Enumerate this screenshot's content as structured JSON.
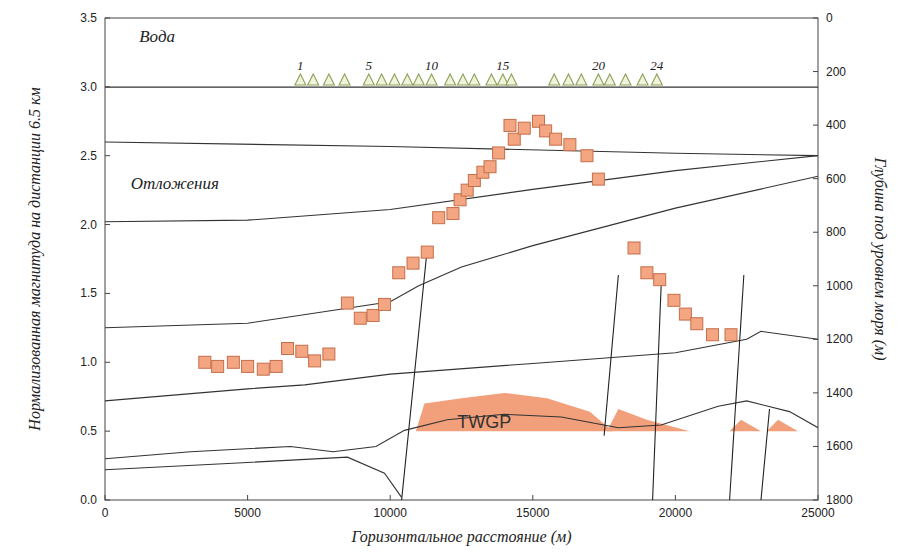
{
  "chart_data": {
    "type": "scatter",
    "x_label": "Горизонтальное расстояние (м)",
    "y_label": "Нормализованная магнитуда на дистанции 6.5 км",
    "y2_label": "Глубина под уровнем моря (м)",
    "xlim": [
      0,
      25000
    ],
    "xticks": [
      0,
      5000,
      10000,
      15000,
      20000,
      25000
    ],
    "ylim": [
      0,
      3.5
    ],
    "yticks": [
      {
        "value": 0,
        "label": "0.0"
      },
      {
        "value": 0.5,
        "label": "0.5"
      },
      {
        "value": 1,
        "label": "1.0"
      },
      {
        "value": 1.5,
        "label": "1.5"
      },
      {
        "value": 2,
        "label": "2.0"
      },
      {
        "value": 2.5,
        "label": "2.5"
      },
      {
        "value": 3,
        "label": "3.0"
      },
      {
        "value": 3.5,
        "label": "3.5"
      }
    ],
    "y2lim": [
      1800,
      0
    ],
    "y2ticks": [
      0,
      200,
      400,
      600,
      800,
      1000,
      1200,
      1400,
      1600,
      1800
    ],
    "grid": false,
    "annotations": [
      {
        "text": "Вода"
      },
      {
        "text": "Отложения"
      },
      {
        "text": "TWGP"
      }
    ],
    "series": [
      {
        "type": "scatter",
        "marker": "square",
        "color": "#f4a582",
        "x": [
          3500,
          3950,
          4500,
          5000,
          5550,
          6000,
          6400,
          6900,
          7350,
          7850,
          8500,
          8950,
          9400,
          9800,
          10300,
          10800,
          11300,
          11700,
          12200,
          12450,
          12700,
          12950,
          13250,
          13500,
          13800,
          14200,
          14350,
          14700,
          15200,
          15450,
          15800,
          16300,
          16900,
          17300,
          18550,
          19000,
          19450,
          19950,
          20350,
          20750,
          21300,
          21950
        ],
        "values": [
          1.0,
          0.97,
          1.0,
          0.97,
          0.95,
          0.97,
          1.1,
          1.08,
          1.01,
          1.06,
          1.43,
          1.32,
          1.34,
          1.42,
          1.65,
          1.72,
          1.8,
          2.05,
          2.08,
          2.18,
          2.25,
          2.32,
          2.38,
          2.42,
          2.52,
          2.72,
          2.62,
          2.7,
          2.75,
          2.68,
          2.62,
          2.58,
          2.5,
          2.33,
          1.83,
          1.65,
          1.6,
          1.45,
          1.35,
          1.28,
          1.2,
          1.2
        ]
      },
      {
        "type": "line",
        "axis": "y2",
        "color": "#333333",
        "line_style": "solid",
        "x": [
          0,
          25000
        ],
        "values": [
          258,
          258
        ]
      },
      {
        "type": "line",
        "axis": "y2",
        "color": "#333333",
        "line_style": "solid",
        "x": [
          0,
          10000,
          20000,
          25000
        ],
        "values": [
          463,
          480,
          505,
          514
        ]
      },
      {
        "type": "line",
        "axis": "y2",
        "color": "#333333",
        "line_style": "solid",
        "x": [
          0,
          5000,
          10000,
          15000,
          20000,
          25000
        ],
        "values": [
          761,
          755,
          715,
          640,
          570,
          514
        ]
      },
      {
        "type": "line",
        "axis": "y2",
        "color": "#333333",
        "line_style": "solid",
        "x": [
          0,
          5000,
          10000,
          11000,
          12500,
          15000,
          20000,
          25000
        ],
        "values": [
          1157,
          1140,
          1060,
          1000,
          930,
          850,
          710,
          591
        ]
      },
      {
        "type": "line",
        "axis": "y2",
        "color": "#333333",
        "line_style": "solid",
        "x": [
          0,
          5000,
          7000,
          10000,
          15000,
          20000,
          22500,
          23000,
          25000
        ],
        "values": [
          1430,
          1385,
          1370,
          1330,
          1290,
          1250,
          1200,
          1170,
          1200
        ]
      },
      {
        "type": "line",
        "axis": "y2",
        "color": "#333333",
        "line_style": "solid",
        "x": [
          0,
          3000,
          6500,
          8000,
          9500,
          10500,
          12000,
          14000,
          16000,
          18000,
          19500,
          21500,
          22500,
          24000,
          25000
        ],
        "values": [
          1646,
          1620,
          1600,
          1620,
          1600,
          1540,
          1500,
          1480,
          1490,
          1530,
          1520,
          1450,
          1430,
          1470,
          1530
        ]
      },
      {
        "type": "line",
        "axis": "y2",
        "color": "#333333",
        "line_style": "solid",
        "x": [
          0,
          5000,
          8500,
          9800,
          10400
        ],
        "values": [
          1687,
          1660,
          1640,
          1700,
          1790
        ]
      },
      {
        "type": "line",
        "axis": "y2",
        "color": "#222222",
        "line_style": "solid",
        "x": [
          10400,
          11300
        ],
        "values": [
          1800,
          860
        ]
      },
      {
        "type": "line",
        "axis": "y2",
        "color": "#222222",
        "line_style": "solid",
        "x": [
          17500,
          18000
        ],
        "values": [
          1560,
          960
        ]
      },
      {
        "type": "line",
        "axis": "y2",
        "color": "#222222",
        "line_style": "solid",
        "x": [
          19200,
          19500
        ],
        "values": [
          1800,
          1000
        ]
      },
      {
        "type": "line",
        "axis": "y2",
        "color": "#222222",
        "line_style": "solid",
        "x": [
          21900,
          22400
        ],
        "values": [
          1800,
          960
        ]
      },
      {
        "type": "line",
        "axis": "y2",
        "color": "#222222",
        "line_style": "solid",
        "x": [
          23000,
          23300
        ],
        "values": [
          1800,
          1460
        ]
      },
      {
        "type": "area",
        "axis": "y2",
        "color": "#f2a07b",
        "x": [
          10900,
          11200,
          12500,
          14000,
          15500,
          17000,
          17800
        ],
        "values": [
          1543,
          1440,
          1420,
          1400,
          1420,
          1470,
          1543
        ]
      },
      {
        "type": "area",
        "axis": "y2",
        "color": "#f2a07b",
        "x": [
          17600,
          18000,
          19000,
          20500
        ],
        "values": [
          1543,
          1460,
          1500,
          1543
        ]
      },
      {
        "type": "area",
        "axis": "y2",
        "color": "#f2a07b",
        "x": [
          21900,
          22300,
          23000
        ],
        "values": [
          1543,
          1500,
          1543
        ]
      },
      {
        "type": "area",
        "axis": "y2",
        "color": "#f2a07b",
        "x": [
          23200,
          23600,
          24300
        ],
        "values": [
          1543,
          1500,
          1543
        ]
      },
      {
        "type": "scatter",
        "marker": "triangle",
        "axis": "y2",
        "color": "#8fa05a",
        "x": [
          6850,
          7300,
          7850,
          8400,
          9250,
          9700,
          10150,
          10600,
          11000,
          11450,
          12100,
          12550,
          12950,
          13550,
          13950,
          14250,
          15750,
          16250,
          16700,
          17300,
          17700,
          18250,
          18850,
          19350
        ],
        "values": [
          250,
          250,
          250,
          250,
          250,
          250,
          250,
          250,
          250,
          250,
          250,
          250,
          250,
          250,
          250,
          250,
          250,
          250,
          250,
          250,
          250,
          250,
          250,
          250
        ],
        "labels": [
          "1",
          null,
          null,
          null,
          "5",
          null,
          null,
          null,
          null,
          "10",
          null,
          null,
          null,
          null,
          "15",
          null,
          null,
          null,
          null,
          "20",
          null,
          null,
          null,
          "24"
        ]
      }
    ]
  }
}
